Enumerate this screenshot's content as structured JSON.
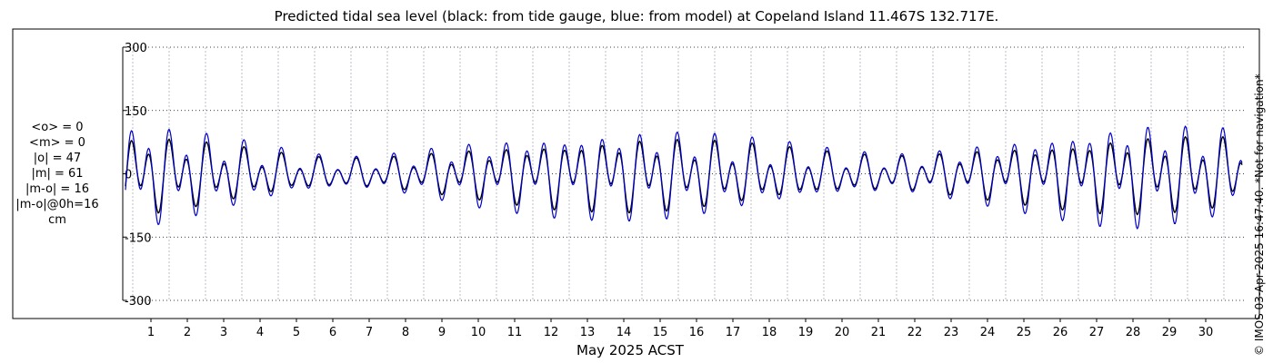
{
  "chart_data": {
    "type": "line",
    "title": "Predicted tidal sea level (black: from tide gauge, blue: from model) at Copeland Island 11.467S 132.717E.",
    "xlabel": "May 2025 ACST",
    "ylabel": "",
    "units": "cm",
    "xlim": [
      0.3,
      31.0
    ],
    "ylim": [
      -310,
      310
    ],
    "yticks": [
      300,
      150,
      0,
      -150,
      -300
    ],
    "xticks": [
      "1",
      "2",
      "3",
      "4",
      "5",
      "6",
      "7",
      "8",
      "9",
      "10",
      "11",
      "12",
      "13",
      "14",
      "15",
      "16",
      "17",
      "18",
      "19",
      "20",
      "21",
      "22",
      "23",
      "24",
      "25",
      "26",
      "27",
      "28",
      "29",
      "30"
    ],
    "grid": true,
    "series": [
      {
        "name": "from tide gauge",
        "color": "#000000",
        "days": [
          0.3,
          1,
          2,
          3,
          4,
          5,
          6,
          7,
          8,
          9,
          10,
          11,
          12,
          13,
          14,
          15,
          16,
          17,
          18,
          19,
          20,
          21,
          22,
          23,
          24,
          25,
          26,
          27,
          28,
          29,
          30,
          31
        ],
        "amplitude_scale": [
          1.0,
          1.0,
          0.9,
          0.75,
          0.6,
          0.45,
          0.38,
          0.38,
          0.45,
          0.55,
          0.65,
          0.75,
          0.85,
          0.9,
          0.95,
          0.95,
          0.9,
          0.8,
          0.7,
          0.6,
          0.5,
          0.45,
          0.45,
          0.55,
          0.65,
          0.75,
          0.85,
          0.95,
          1.0,
          1.0,
          0.95,
          0.9
        ]
      },
      {
        "name": "from model",
        "color": "#0000cc",
        "days": [
          0.3,
          1,
          2,
          3,
          4,
          5,
          6,
          7,
          8,
          9,
          10,
          11,
          12,
          13,
          14,
          15,
          16,
          17,
          18,
          19,
          20,
          21,
          22,
          23,
          24,
          25,
          26,
          27,
          28,
          29,
          30,
          31
        ],
        "amplitude_scale": [
          1.3,
          1.3,
          1.15,
          0.95,
          0.75,
          0.55,
          0.42,
          0.42,
          0.55,
          0.7,
          0.85,
          0.95,
          1.05,
          1.1,
          1.15,
          1.15,
          1.1,
          0.95,
          0.85,
          0.7,
          0.58,
          0.5,
          0.5,
          0.65,
          0.8,
          0.95,
          1.1,
          1.25,
          1.35,
          1.3,
          1.2,
          1.1
        ]
      }
    ]
  },
  "stats": {
    "mean_obs": "<o> = 0",
    "mean_model": "<m> = 0",
    "abs_obs": "|o| = 47",
    "abs_model": "|m| = 61",
    "abs_diff": "|m-o| = 16",
    "abs_diff_0h": "|m-o|@0h=16",
    "unit": "cm"
  },
  "credit": "© IMOS 03-Apr-2025 16:47:40. *Not for navigation*",
  "colors": {
    "gauge": "#000000",
    "model": "#0000cc",
    "grid": "#b0b0b0"
  }
}
